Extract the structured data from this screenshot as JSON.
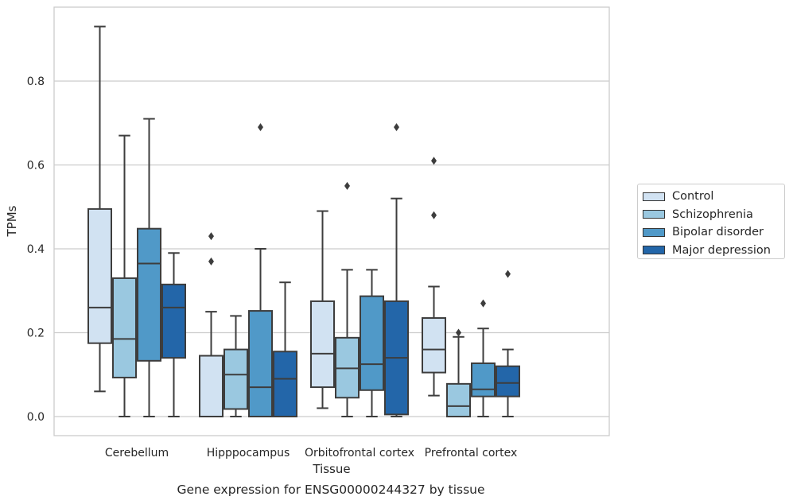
{
  "chart_data": {
    "type": "box",
    "ylabel": "TPMs",
    "xlabel": "Tissue",
    "caption": "Gene expression for ENSG00000244327 by tissue",
    "ylim": [
      -0.045,
      0.98
    ],
    "yticks": [
      "0.0",
      "0.2",
      "0.4",
      "0.6",
      "0.8"
    ],
    "ytick_values": [
      0.0,
      0.2,
      0.4,
      0.6,
      0.8
    ],
    "grid": "horizontal",
    "legend_position": "right",
    "categories": [
      "Cerebellum",
      "Hipppocampus",
      "Orbitofrontal cortex",
      "Prefrontal cortex"
    ],
    "series": [
      {
        "name": "Control",
        "color": "#d1e2f2",
        "boxes": [
          {
            "whislo": 0.06,
            "q1": 0.175,
            "med": 0.26,
            "q3": 0.495,
            "whishi": 0.93,
            "fliers": []
          },
          {
            "whislo": 0.0,
            "q1": 0.0,
            "med": 0.0,
            "q3": 0.145,
            "whishi": 0.25,
            "fliers": [
              0.43,
              0.37
            ]
          },
          {
            "whislo": 0.02,
            "q1": 0.07,
            "med": 0.15,
            "q3": 0.275,
            "whishi": 0.49,
            "fliers": []
          },
          {
            "whislo": 0.05,
            "q1": 0.105,
            "med": 0.16,
            "q3": 0.235,
            "whishi": 0.31,
            "fliers": [
              0.61,
              0.48
            ]
          }
        ]
      },
      {
        "name": "Schizophrenia",
        "color": "#9ac8e0",
        "boxes": [
          {
            "whislo": 0.0,
            "q1": 0.093,
            "med": 0.185,
            "q3": 0.33,
            "whishi": 0.67,
            "fliers": []
          },
          {
            "whislo": 0.0,
            "q1": 0.018,
            "med": 0.1,
            "q3": 0.16,
            "whishi": 0.24,
            "fliers": []
          },
          {
            "whislo": 0.0,
            "q1": 0.045,
            "med": 0.115,
            "q3": 0.188,
            "whishi": 0.35,
            "fliers": [
              0.55
            ]
          },
          {
            "whislo": 0.0,
            "q1": 0.0,
            "med": 0.025,
            "q3": 0.078,
            "whishi": 0.19,
            "fliers": [
              0.2
            ]
          }
        ]
      },
      {
        "name": "Bipolar disorder",
        "color": "#5099c8",
        "boxes": [
          {
            "whislo": 0.0,
            "q1": 0.133,
            "med": 0.365,
            "q3": 0.448,
            "whishi": 0.71,
            "fliers": []
          },
          {
            "whislo": 0.0,
            "q1": 0.0,
            "med": 0.07,
            "q3": 0.252,
            "whishi": 0.4,
            "fliers": [
              0.69
            ]
          },
          {
            "whislo": 0.0,
            "q1": 0.063,
            "med": 0.125,
            "q3": 0.287,
            "whishi": 0.35,
            "fliers": []
          },
          {
            "whislo": 0.0,
            "q1": 0.048,
            "med": 0.065,
            "q3": 0.127,
            "whishi": 0.21,
            "fliers": [
              0.27
            ]
          }
        ]
      },
      {
        "name": "Major depression",
        "color": "#2366a9",
        "boxes": [
          {
            "whislo": 0.0,
            "q1": 0.14,
            "med": 0.26,
            "q3": 0.315,
            "whishi": 0.39,
            "fliers": []
          },
          {
            "whislo": 0.0,
            "q1": 0.0,
            "med": 0.09,
            "q3": 0.155,
            "whishi": 0.32,
            "fliers": []
          },
          {
            "whislo": 0.0,
            "q1": 0.005,
            "med": 0.14,
            "q3": 0.275,
            "whishi": 0.52,
            "fliers": [
              0.69
            ]
          },
          {
            "whislo": 0.0,
            "q1": 0.048,
            "med": 0.08,
            "q3": 0.12,
            "whishi": 0.16,
            "fliers": [
              0.34
            ]
          }
        ]
      }
    ]
  }
}
